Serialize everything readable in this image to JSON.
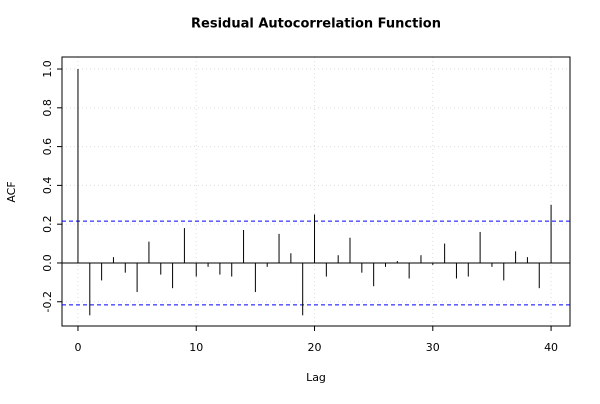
{
  "chart_data": {
    "type": "acf",
    "title": "Residual Autocorrelation Function",
    "x_label": "Lag",
    "y_label": "ACF",
    "x": [
      0,
      1,
      2,
      3,
      4,
      5,
      6,
      7,
      8,
      9,
      10,
      11,
      12,
      13,
      14,
      15,
      16,
      17,
      18,
      19,
      20,
      21,
      22,
      23,
      24,
      25,
      26,
      27,
      28,
      29,
      30,
      31,
      32,
      33,
      34,
      35,
      36,
      37,
      38,
      39,
      40
    ],
    "values": [
      1.0,
      -0.27,
      -0.09,
      0.03,
      -0.05,
      -0.15,
      0.11,
      -0.06,
      -0.13,
      0.18,
      -0.07,
      -0.02,
      -0.06,
      -0.07,
      0.17,
      -0.15,
      -0.02,
      0.15,
      0.05,
      -0.27,
      0.25,
      -0.07,
      0.04,
      0.13,
      -0.05,
      -0.12,
      -0.02,
      0.01,
      -0.08,
      0.04,
      -0.01,
      0.1,
      -0.08,
      -0.07,
      0.16,
      -0.02,
      -0.09,
      0.06,
      0.03,
      -0.13,
      0.3
    ],
    "color": "#000000",
    "confidence_bands": [
      0.216,
      -0.216
    ],
    "band_color": "#0000ff",
    "xlim": [
      -1.35,
      41.6
    ],
    "ylim": [
      -0.325,
      1.062
    ],
    "xticks": [
      0,
      10,
      20,
      30,
      40
    ],
    "yticks": [
      -0.2,
      {
        "value": 0,
        "label": "0.0"
      },
      0.2,
      0.4,
      0.6,
      0.8,
      {
        "value": 1,
        "label": "1.0"
      }
    ],
    "grid": true
  }
}
